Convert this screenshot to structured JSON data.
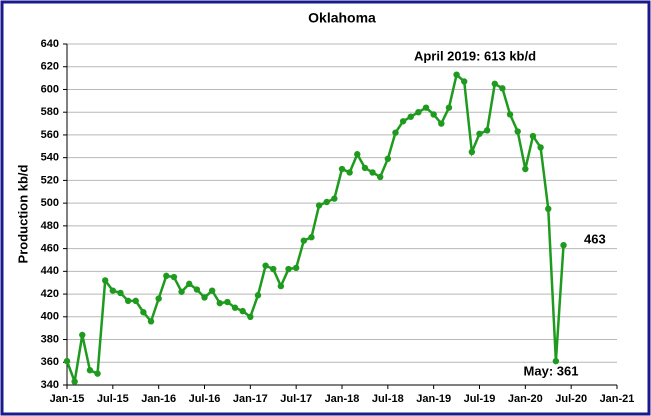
{
  "chart_data": {
    "type": "line",
    "title": "Oklahoma",
    "y_label": "Production kb/d",
    "categories": [
      "Jan-15",
      null,
      null,
      null,
      null,
      null,
      "Jul-15",
      null,
      null,
      null,
      null,
      null,
      "Jan-16",
      null,
      null,
      null,
      null,
      null,
      "Jul-16",
      null,
      null,
      null,
      null,
      null,
      "Jan-17",
      null,
      null,
      null,
      null,
      null,
      "Jul-17",
      null,
      null,
      null,
      null,
      null,
      "Jan-18",
      null,
      null,
      null,
      null,
      null,
      "Jul-18",
      null,
      null,
      null,
      null,
      null,
      "Jan-19",
      null,
      null,
      null,
      null,
      null,
      "Jul-19",
      null,
      null,
      null,
      null,
      null,
      "Jan-20",
      null,
      null,
      null,
      null,
      null,
      "Jul-20",
      null,
      null,
      null,
      null,
      null,
      "Jan-21"
    ],
    "series": [
      {
        "name": "Oklahoma",
        "color": "#1e9b1e",
        "values": [
          361,
          343,
          384,
          353,
          350,
          432,
          423,
          421,
          414,
          414,
          404,
          396,
          416,
          436,
          435,
          422,
          429,
          424,
          417,
          423,
          412,
          413,
          408,
          405,
          400,
          419,
          445,
          442,
          427,
          442,
          443,
          467,
          470,
          498,
          501,
          504,
          530,
          527,
          543,
          531,
          527,
          523,
          539,
          562,
          572,
          576,
          580,
          584,
          578,
          570,
          584,
          613,
          607,
          545,
          561,
          564,
          605,
          601,
          578,
          563,
          530,
          559,
          549,
          495,
          361,
          463,
          null,
          null,
          null,
          null,
          null,
          null,
          null
        ]
      }
    ],
    "ylim": [
      340,
      640
    ],
    "yticks": [
      340,
      360,
      380,
      400,
      420,
      440,
      460,
      480,
      500,
      520,
      540,
      560,
      580,
      600,
      620,
      640
    ],
    "grid": true,
    "annotations": [
      "April 2019:  613 kb/d",
      "463",
      "May: 361"
    ]
  }
}
